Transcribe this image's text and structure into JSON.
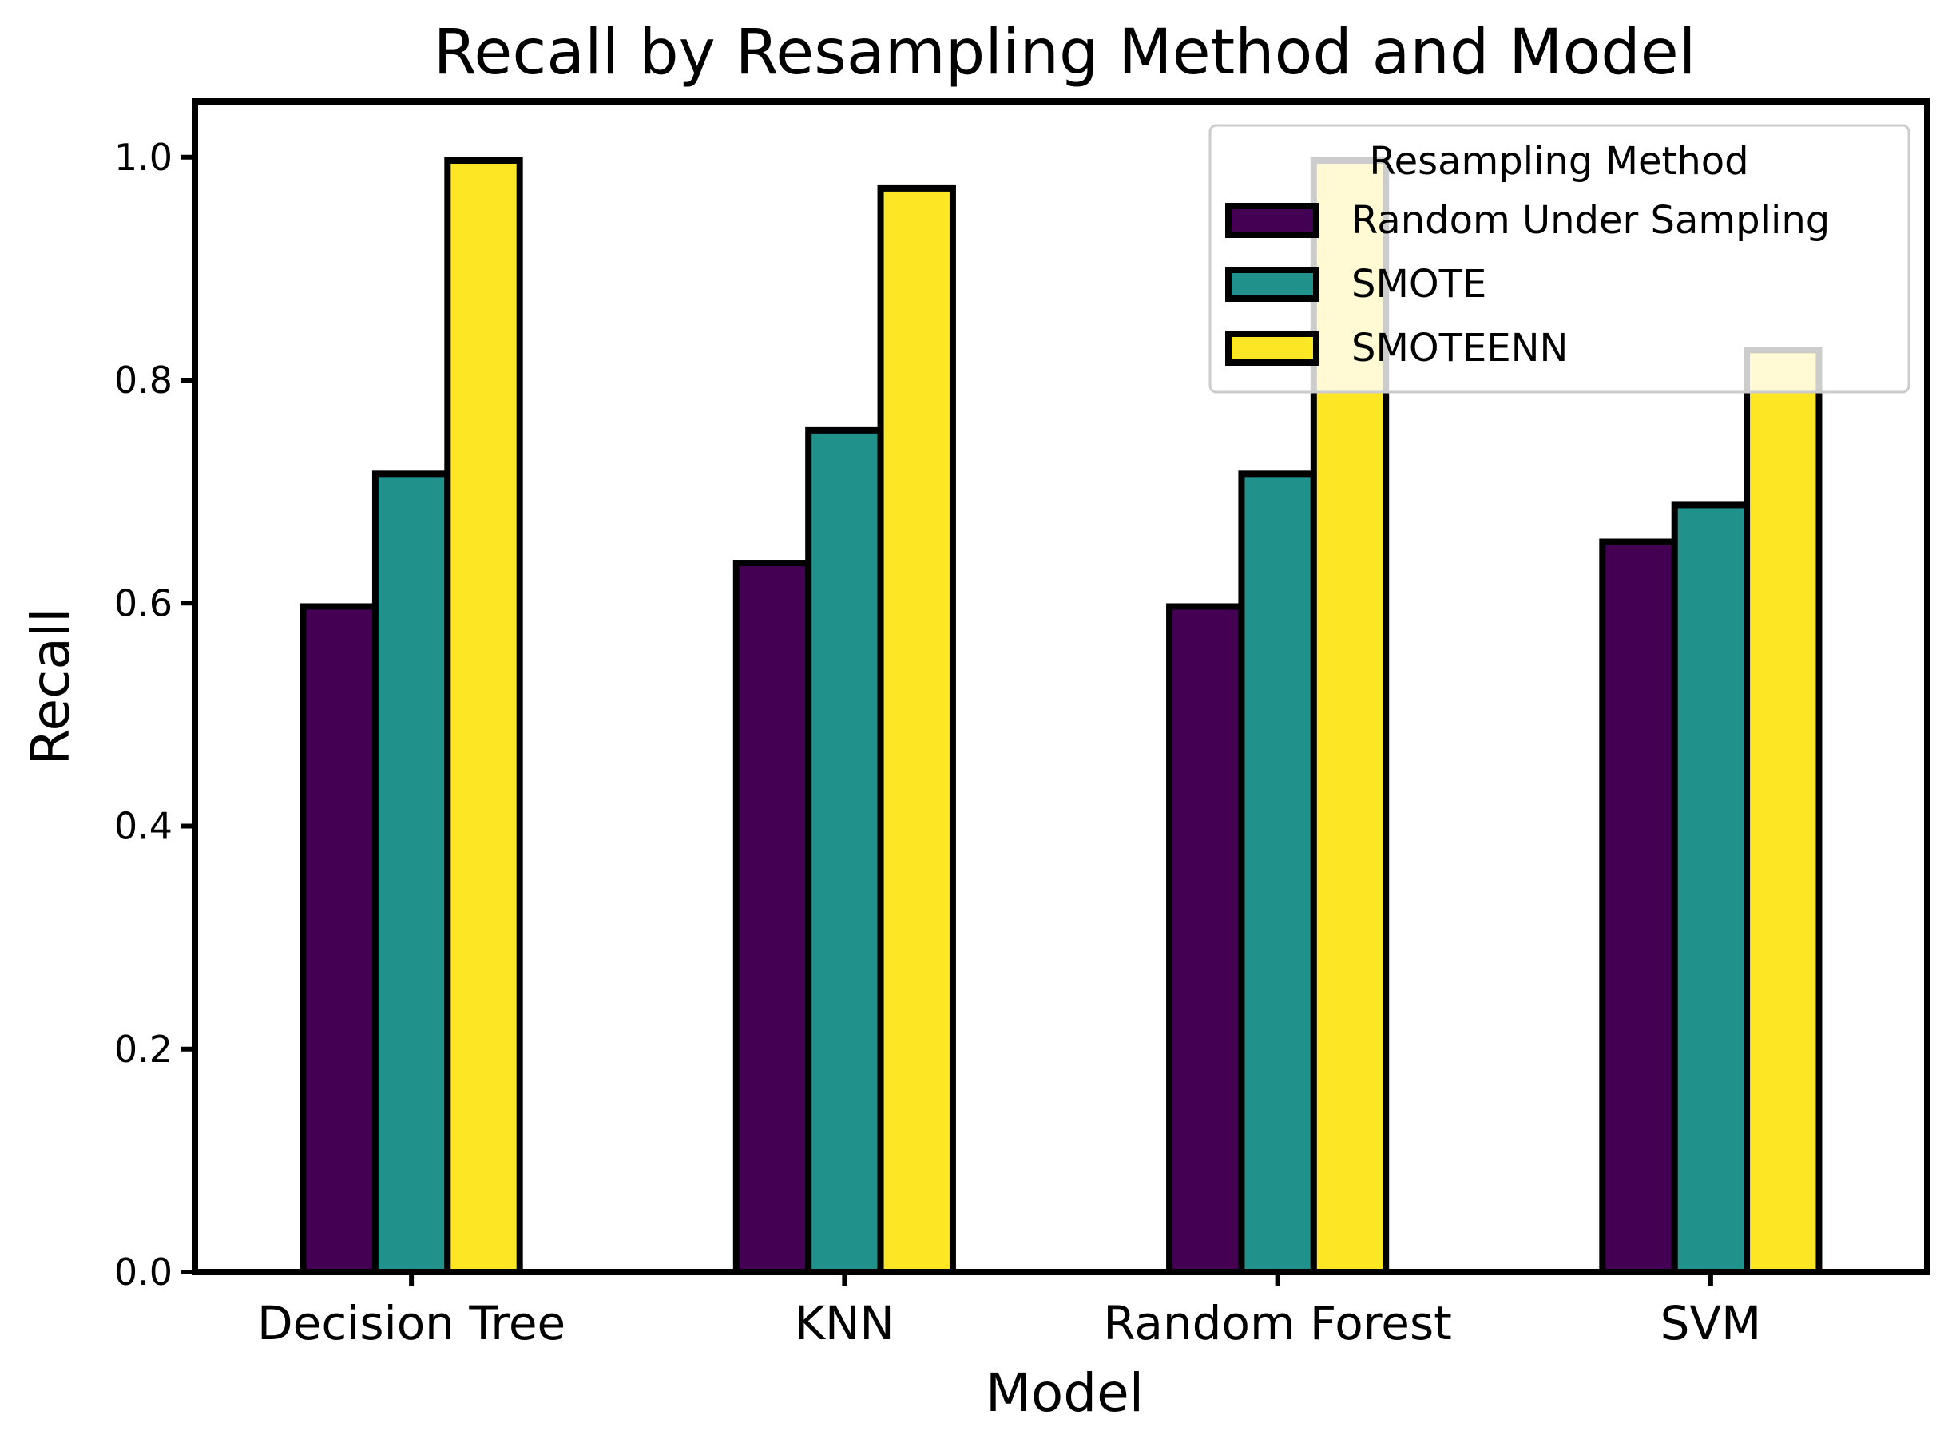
{
  "chart_data": {
    "type": "bar",
    "title": "Recall by Resampling Method and Model",
    "xlabel": "Model",
    "ylabel": "Recall",
    "categories": [
      "Decision Tree",
      "KNN",
      "Random Forest",
      "SVM"
    ],
    "ylim": [
      0,
      1.05
    ],
    "yticks": [
      "0.0",
      "0.2",
      "0.4",
      "0.6",
      "0.8",
      "1.0"
    ],
    "ytick_values": [
      0.0,
      0.2,
      0.4,
      0.6,
      0.8,
      1.0
    ],
    "grid": false,
    "legend": {
      "title": "Resampling Method",
      "placement": "top-right"
    },
    "series": [
      {
        "name": "Random Under Sampling",
        "color": "#440154",
        "values": [
          0.597,
          0.636,
          0.597,
          0.655
        ]
      },
      {
        "name": "SMOTE",
        "color": "#21918c",
        "values": [
          0.716,
          0.755,
          0.716,
          0.688
        ]
      },
      {
        "name": "SMOTEENN",
        "color": "#fde725",
        "values": [
          0.997,
          0.972,
          0.997,
          0.827
        ]
      }
    ]
  }
}
